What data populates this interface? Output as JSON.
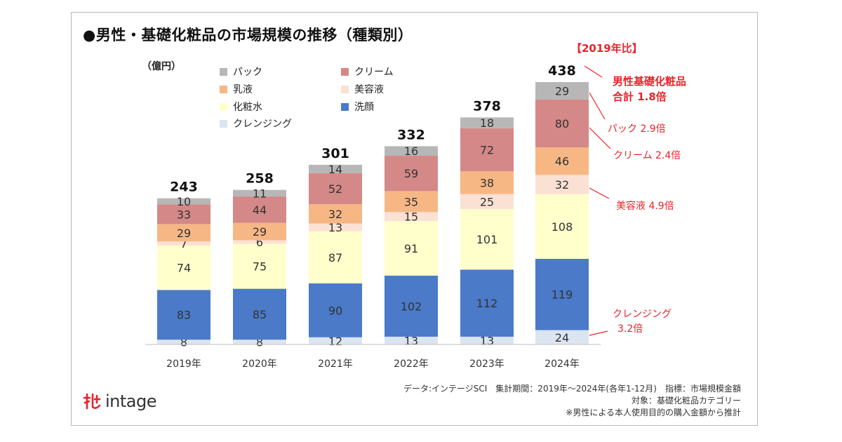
{
  "title": "●男性・基礎化粧品の市場規模の推移（種類別）",
  "unit_label": "（億円）",
  "comparison_header": "【2019年比】",
  "annotations": {
    "total_line1": "男性基礎化粧品",
    "total_line2": "合計 1.8倍",
    "pack": "パック 2.9倍",
    "cream": "クリーム 2.4倍",
    "serum": "美容液 4.9倍",
    "cleansing_line1": "クレンジング",
    "cleansing_line2": "3.2倍"
  },
  "footer": {
    "line1": "データ:インテージSCI　集計期間：2019年～2024年(各年1-12月)　指標：市場規模金額",
    "line2": "対象：基礎化粧品カテゴリー",
    "line3": "※男性による本人使用目的の購入金額から推計"
  },
  "logo_text": "intage",
  "legend": [
    {
      "name": "パック",
      "color": "#b7b7b7"
    },
    {
      "name": "クリーム",
      "color": "#d48887"
    },
    {
      "name": "乳液",
      "color": "#f7b785"
    },
    {
      "name": "美容液",
      "color": "#fbe1d4"
    },
    {
      "name": "化粧水",
      "color": "#ffffcc"
    },
    {
      "name": "洗顔",
      "color": "#4a7ac8"
    },
    {
      "name": "クレンジング",
      "color": "#dbe5f1"
    }
  ],
  "chart_data": {
    "type": "bar",
    "stacked": true,
    "categories": [
      "2019年",
      "2020年",
      "2021年",
      "2022年",
      "2023年",
      "2024年"
    ],
    "totals": [
      243,
      258,
      301,
      332,
      378,
      438
    ],
    "series": [
      {
        "name": "クレンジング",
        "color": "#dbe5f1",
        "values": [
          8,
          8,
          12,
          13,
          13,
          24
        ]
      },
      {
        "name": "洗顔",
        "color": "#4a7ac8",
        "values": [
          83,
          85,
          90,
          102,
          112,
          119
        ]
      },
      {
        "name": "化粧水",
        "color": "#ffffcc",
        "values": [
          74,
          75,
          87,
          91,
          101,
          108
        ]
      },
      {
        "name": "美容液",
        "color": "#fbe1d4",
        "values": [
          7,
          6,
          13,
          15,
          25,
          32
        ]
      },
      {
        "name": "乳液",
        "color": "#f7b785",
        "values": [
          29,
          29,
          32,
          35,
          38,
          46
        ]
      },
      {
        "name": "クリーム",
        "color": "#d48887",
        "values": [
          33,
          44,
          52,
          59,
          72,
          80
        ]
      },
      {
        "name": "パック",
        "color": "#b7b7b7",
        "values": [
          10,
          11,
          14,
          16,
          18,
          29
        ]
      }
    ],
    "ylabel": "（億円）",
    "ylim": [
      0,
      438
    ],
    "grid": false,
    "legend_position": "top-left"
  }
}
